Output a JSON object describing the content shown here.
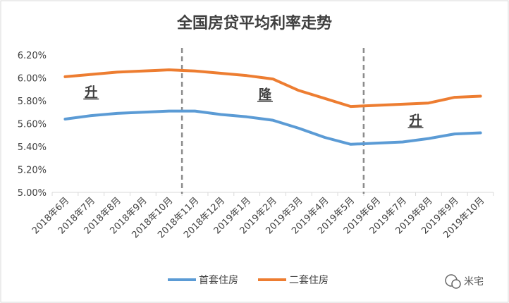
{
  "chart_data": {
    "type": "line",
    "title": "全国房贷平均利率走势",
    "categories": [
      "2018年6月",
      "2018年7月",
      "2018年8月",
      "2018年9月",
      "2018年10月",
      "2018年11月",
      "2018年12月",
      "2019年1月",
      "2019年2月",
      "2019年3月",
      "2019年4月",
      "2019年5月",
      "2019年6月",
      "2019年7月",
      "2019年8月",
      "2019年9月",
      "2019年10月"
    ],
    "series": [
      {
        "name": "首套住房",
        "color": "#5b9bd5",
        "values": [
          5.64,
          5.67,
          5.69,
          5.7,
          5.71,
          5.71,
          5.68,
          5.66,
          5.63,
          5.56,
          5.48,
          5.42,
          5.43,
          5.44,
          5.47,
          5.51,
          5.52
        ]
      },
      {
        "name": "二套住房",
        "color": "#ed7d31",
        "values": [
          6.01,
          6.03,
          6.05,
          6.06,
          6.07,
          6.06,
          6.04,
          6.02,
          5.99,
          5.89,
          5.82,
          5.75,
          5.76,
          5.77,
          5.78,
          5.83,
          5.84
        ]
      }
    ],
    "ylim": [
      5.0,
      6.2
    ],
    "yticks": [
      "5.00%",
      "5.20%",
      "5.40%",
      "5.60%",
      "5.80%",
      "6.00%",
      "6.20%"
    ],
    "grid": false,
    "legend": "bottom",
    "annotations": [
      {
        "text": "升",
        "category_index": 1,
        "y": 5.84
      },
      {
        "text": "降",
        "category_index": 7.7,
        "y": 5.82
      },
      {
        "text": "升",
        "category_index": 13.5,
        "y": 5.59
      }
    ],
    "divider_lines_after_category": [
      4.5,
      11.5
    ]
  },
  "watermark": {
    "text": "米宅"
  }
}
